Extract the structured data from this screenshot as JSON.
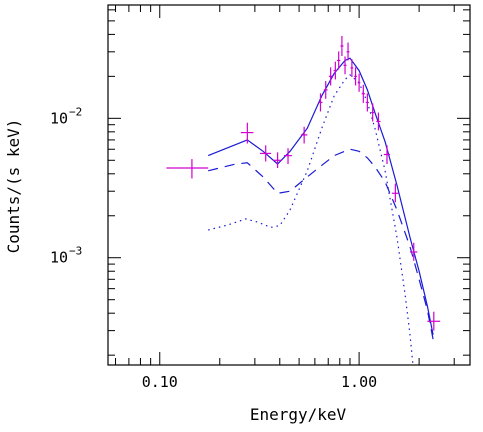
{
  "chart_data": {
    "type": "scatter",
    "title": "",
    "xlabel": "Energy/keV",
    "ylabel": "Counts/(s keV)",
    "xscale": "log",
    "yscale": "log",
    "xlim": [
      0.055,
      3.6
    ],
    "ylim": [
      0.00017,
      0.065
    ],
    "grid": false,
    "x_tick_labels": [
      {
        "value": 0.1,
        "label": "0.10"
      },
      {
        "value": 1.0,
        "label": "1.00"
      }
    ],
    "y_tick_labels": [
      {
        "value": 0.001,
        "base": "10",
        "exp": "−3"
      },
      {
        "value": 0.01,
        "base": "10",
        "exp": "−2"
      }
    ],
    "colors": {
      "data": "#d100d1",
      "model": "#1a1ad6",
      "axes": "#000000"
    },
    "series": [
      {
        "style": "data-crosses",
        "points": [
          {
            "x": 0.145,
            "xerr": [
              0.108,
              0.175
            ],
            "y": 0.0044,
            "yerr": [
              0.0037,
              0.0051
            ]
          },
          {
            "x": 0.275,
            "xerr": [
              0.255,
              0.295
            ],
            "y": 0.0079,
            "yerr": [
              0.0066,
              0.0093
            ]
          },
          {
            "x": 0.34,
            "xerr": [
              0.318,
              0.362
            ],
            "y": 0.0056,
            "yerr": [
              0.0049,
              0.0064
            ]
          },
          {
            "x": 0.39,
            "xerr": [
              0.37,
              0.41
            ],
            "y": 0.005,
            "yerr": [
              0.0044,
              0.0057
            ]
          },
          {
            "x": 0.44,
            "xerr": [
              0.42,
              0.46
            ],
            "y": 0.0054,
            "yerr": [
              0.0047,
              0.0061
            ]
          },
          {
            "x": 0.53,
            "xerr": [
              0.51,
              0.55
            ],
            "y": 0.0076,
            "yerr": [
              0.0066,
              0.0087
            ]
          },
          {
            "x": 0.64,
            "xerr": [
              0.625,
              0.655
            ],
            "y": 0.013,
            "yerr": [
              0.0112,
              0.0151
            ]
          },
          {
            "x": 0.68,
            "xerr": [
              0.665,
              0.695
            ],
            "y": 0.016,
            "yerr": [
              0.0138,
              0.0185
            ]
          },
          {
            "x": 0.72,
            "xerr": [
              0.705,
              0.735
            ],
            "y": 0.02,
            "yerr": [
              0.0172,
              0.0232
            ]
          },
          {
            "x": 0.76,
            "xerr": [
              0.745,
              0.775
            ],
            "y": 0.022,
            "yerr": [
              0.019,
              0.0255
            ]
          },
          {
            "x": 0.79,
            "xerr": [
              0.775,
              0.805
            ],
            "y": 0.026,
            "yerr": [
              0.0224,
              0.0302
            ]
          },
          {
            "x": 0.82,
            "xerr": [
              0.805,
              0.835
            ],
            "y": 0.033,
            "yerr": [
              0.028,
              0.039
            ]
          },
          {
            "x": 0.85,
            "xerr": [
              0.835,
              0.865
            ],
            "y": 0.024,
            "yerr": [
              0.0207,
              0.0278
            ]
          },
          {
            "x": 0.88,
            "xerr": [
              0.865,
              0.895
            ],
            "y": 0.03,
            "yerr": [
              0.026,
              0.035
            ]
          },
          {
            "x": 0.92,
            "xerr": [
              0.905,
              0.935
            ],
            "y": 0.023,
            "yerr": [
              0.0198,
              0.0266
            ]
          },
          {
            "x": 0.96,
            "xerr": [
              0.945,
              0.975
            ],
            "y": 0.02,
            "yerr": [
              0.0172,
              0.0232
            ]
          },
          {
            "x": 1.0,
            "xerr": [
              0.985,
              1.015
            ],
            "y": 0.018,
            "yerr": [
              0.0155,
              0.0209
            ]
          },
          {
            "x": 1.05,
            "xerr": [
              1.03,
              1.07
            ],
            "y": 0.015,
            "yerr": [
              0.0129,
              0.0174
            ]
          },
          {
            "x": 1.1,
            "xerr": [
              1.08,
              1.12
            ],
            "y": 0.013,
            "yerr": [
              0.0112,
              0.0151
            ]
          },
          {
            "x": 1.17,
            "xerr": [
              1.15,
              1.19
            ],
            "y": 0.011,
            "yerr": [
              0.0095,
              0.0128
            ]
          },
          {
            "x": 1.25,
            "xerr": [
              1.22,
              1.28
            ],
            "y": 0.0095,
            "yerr": [
              0.0082,
              0.011
            ]
          },
          {
            "x": 1.38,
            "xerr": [
              1.33,
              1.43
            ],
            "y": 0.0055,
            "yerr": [
              0.0047,
              0.0064
            ]
          },
          {
            "x": 1.52,
            "xerr": [
              1.46,
              1.58
            ],
            "y": 0.0029,
            "yerr": [
              0.0025,
              0.0034
            ]
          },
          {
            "x": 1.88,
            "xerr": [
              1.8,
              1.96
            ],
            "y": 0.0011,
            "yerr": [
              0.00095,
              0.00128
            ]
          },
          {
            "x": 2.37,
            "xerr": [
              2.2,
              2.55
            ],
            "y": 0.00035,
            "yerr": [
              0.0003,
              0.00041
            ]
          }
        ]
      },
      {
        "style": "solid",
        "points": [
          {
            "x": 0.175,
            "y": 0.0054
          },
          {
            "x": 0.275,
            "y": 0.007
          },
          {
            "x": 0.33,
            "y": 0.0058
          },
          {
            "x": 0.39,
            "y": 0.0047
          },
          {
            "x": 0.45,
            "y": 0.0058
          },
          {
            "x": 0.55,
            "y": 0.0085
          },
          {
            "x": 0.65,
            "y": 0.0145
          },
          {
            "x": 0.75,
            "y": 0.021
          },
          {
            "x": 0.85,
            "y": 0.026
          },
          {
            "x": 0.9,
            "y": 0.027
          },
          {
            "x": 1.0,
            "y": 0.022
          },
          {
            "x": 1.1,
            "y": 0.016
          },
          {
            "x": 1.2,
            "y": 0.011
          },
          {
            "x": 1.35,
            "y": 0.0068
          },
          {
            "x": 1.55,
            "y": 0.0033
          },
          {
            "x": 1.8,
            "y": 0.0014
          },
          {
            "x": 2.0,
            "y": 0.0008
          },
          {
            "x": 2.2,
            "y": 0.00045
          },
          {
            "x": 2.35,
            "y": 0.00028
          }
        ]
      },
      {
        "style": "dashed",
        "points": [
          {
            "x": 0.175,
            "y": 0.0042
          },
          {
            "x": 0.24,
            "y": 0.0047
          },
          {
            "x": 0.275,
            "y": 0.0048
          },
          {
            "x": 0.33,
            "y": 0.0038
          },
          {
            "x": 0.39,
            "y": 0.0029
          },
          {
            "x": 0.45,
            "y": 0.003
          },
          {
            "x": 0.55,
            "y": 0.0038
          },
          {
            "x": 0.65,
            "y": 0.0046
          },
          {
            "x": 0.75,
            "y": 0.0054
          },
          {
            "x": 0.9,
            "y": 0.006
          },
          {
            "x": 1.0,
            "y": 0.0058
          },
          {
            "x": 1.1,
            "y": 0.0052
          },
          {
            "x": 1.2,
            "y": 0.0045
          },
          {
            "x": 1.35,
            "y": 0.0035
          },
          {
            "x": 1.55,
            "y": 0.0022
          },
          {
            "x": 1.8,
            "y": 0.0012
          },
          {
            "x": 2.0,
            "y": 0.0007
          },
          {
            "x": 2.2,
            "y": 0.00042
          },
          {
            "x": 2.35,
            "y": 0.00026
          }
        ]
      },
      {
        "style": "dotted",
        "points": [
          {
            "x": 0.175,
            "y": 0.00158
          },
          {
            "x": 0.22,
            "y": 0.00172
          },
          {
            "x": 0.27,
            "y": 0.0019
          },
          {
            "x": 0.31,
            "y": 0.0018
          },
          {
            "x": 0.36,
            "y": 0.00165
          },
          {
            "x": 0.4,
            "y": 0.0017
          },
          {
            "x": 0.45,
            "y": 0.0022
          },
          {
            "x": 0.55,
            "y": 0.0042
          },
          {
            "x": 0.65,
            "y": 0.0085
          },
          {
            "x": 0.75,
            "y": 0.0145
          },
          {
            "x": 0.85,
            "y": 0.019
          },
          {
            "x": 0.9,
            "y": 0.0205
          },
          {
            "x": 1.0,
            "y": 0.018
          },
          {
            "x": 1.1,
            "y": 0.013
          },
          {
            "x": 1.2,
            "y": 0.0085
          },
          {
            "x": 1.35,
            "y": 0.0042
          },
          {
            "x": 1.55,
            "y": 0.0014
          },
          {
            "x": 1.7,
            "y": 0.00055
          },
          {
            "x": 1.8,
            "y": 0.00028
          },
          {
            "x": 1.86,
            "y": 0.000175
          }
        ]
      }
    ]
  }
}
